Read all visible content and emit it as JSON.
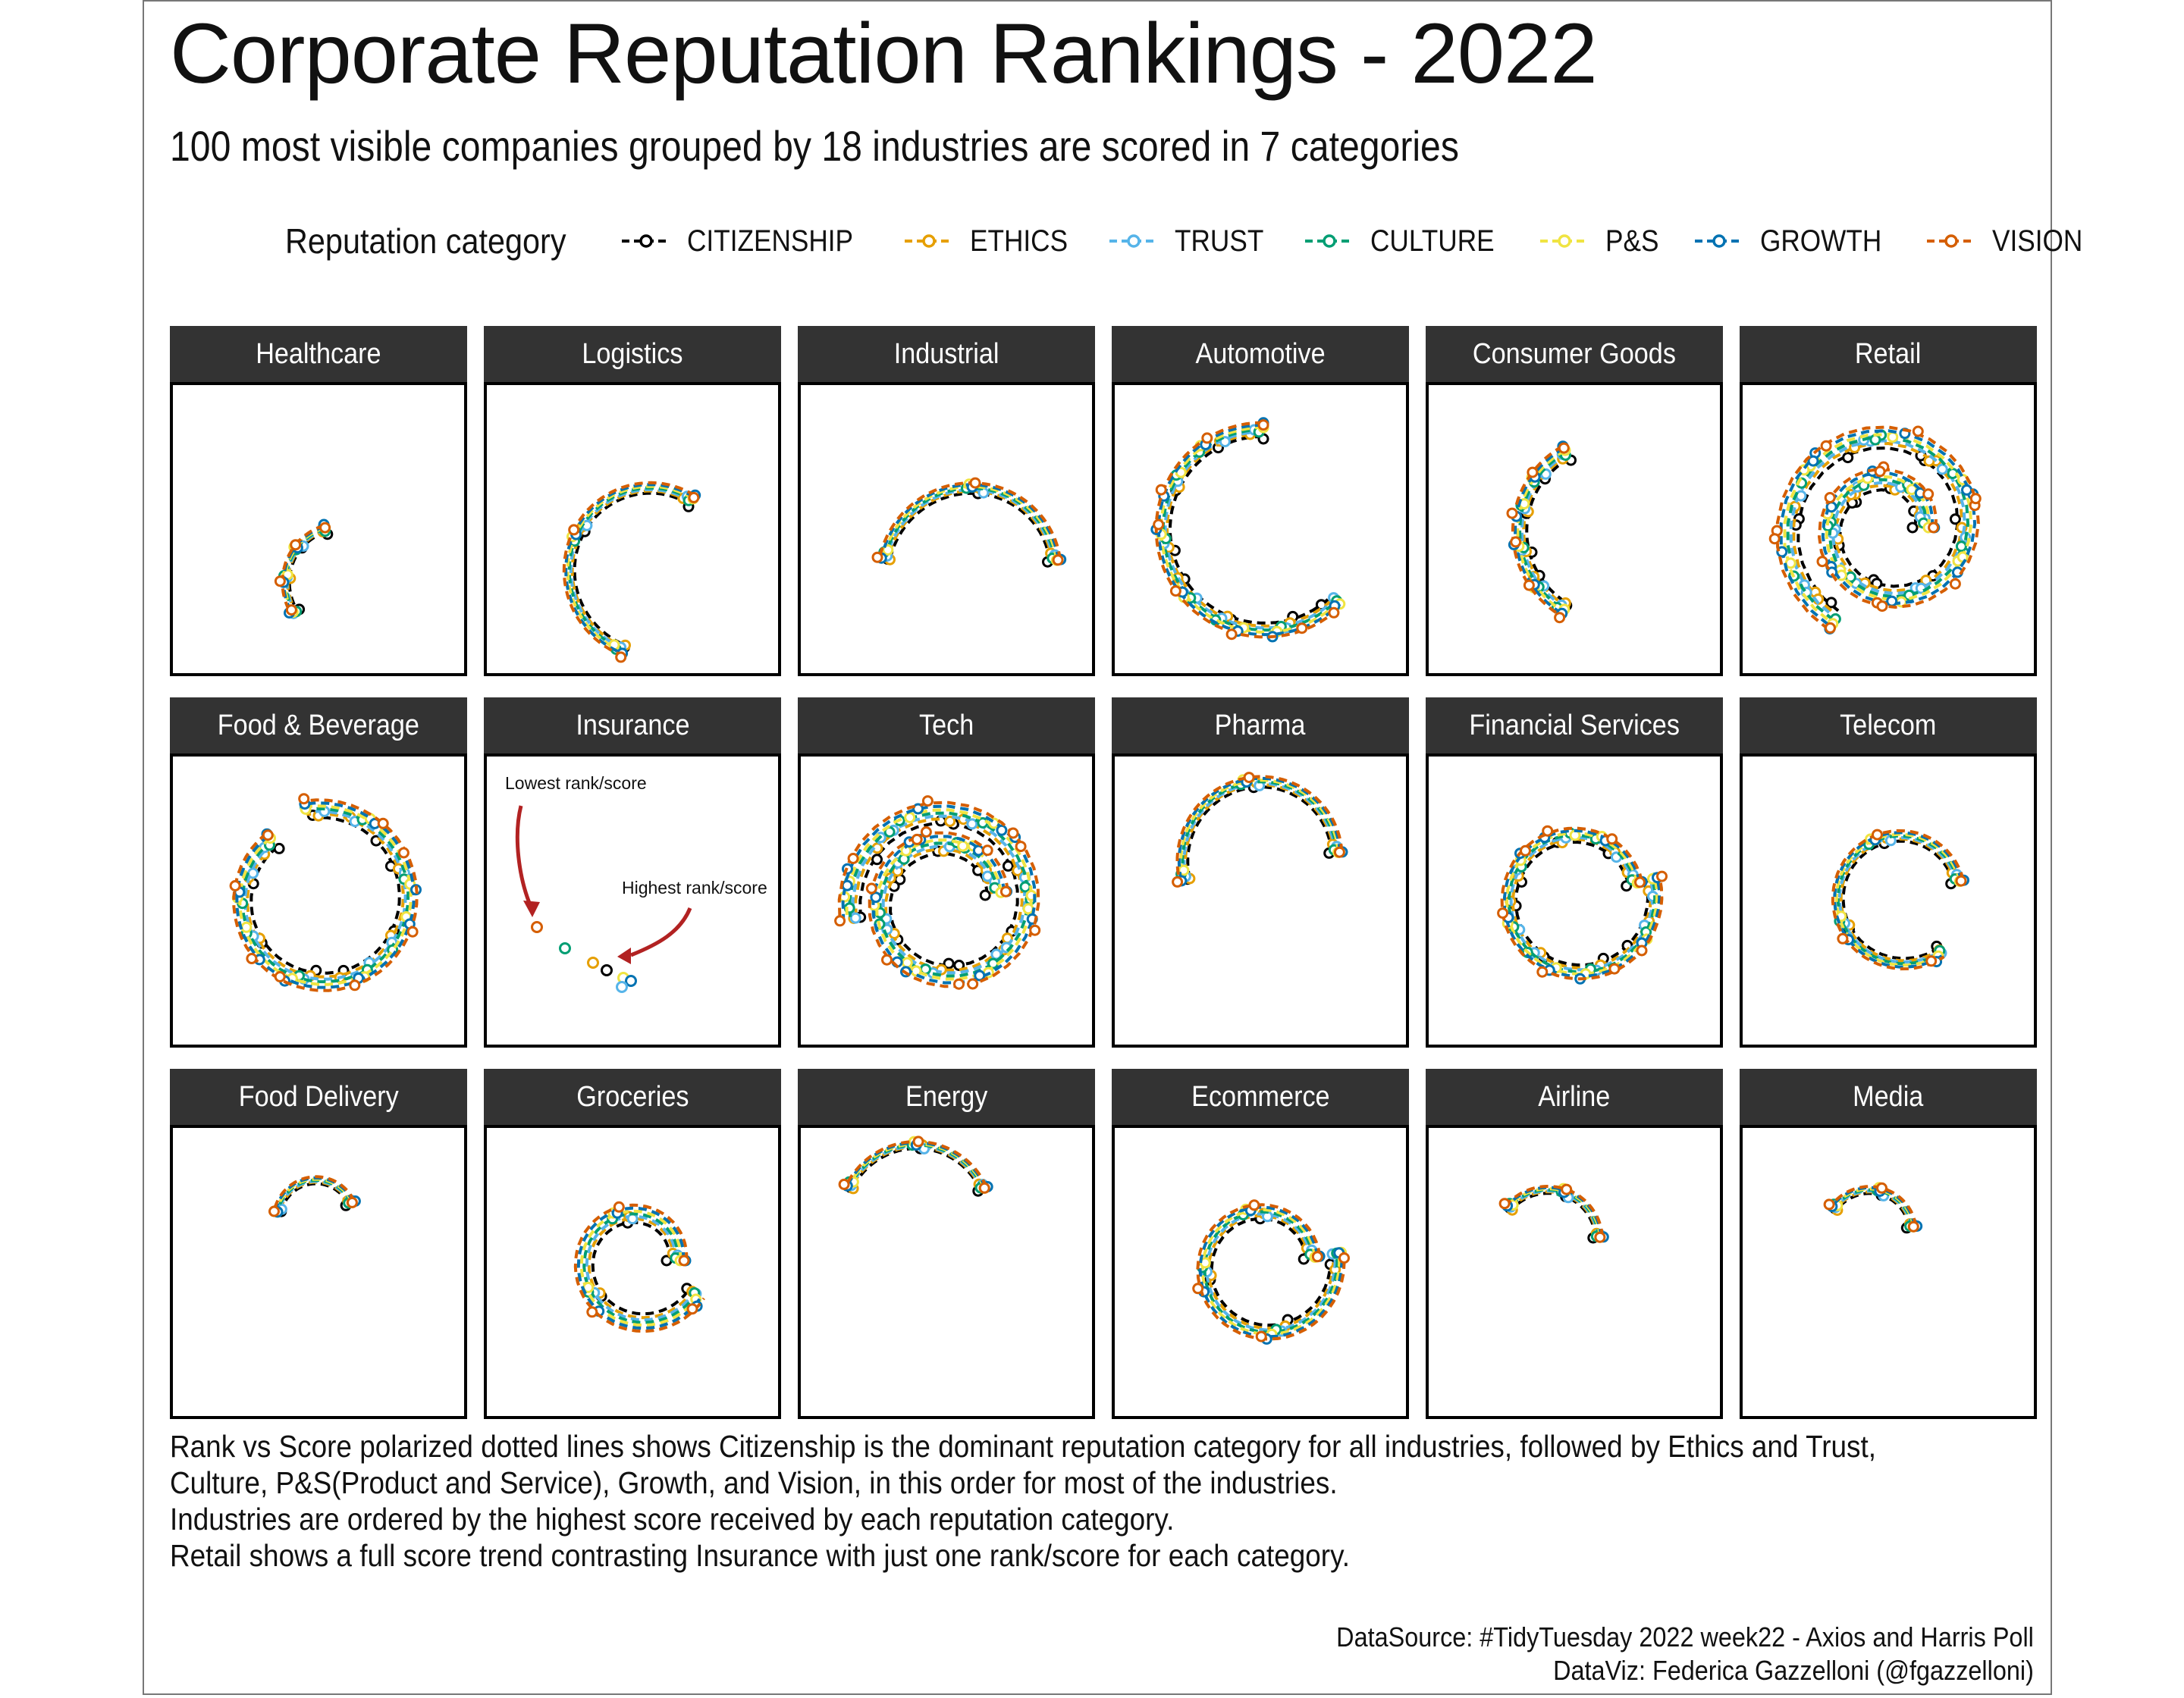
{
  "title": "Corporate Reputation Rankings - 2022",
  "subtitle": "100 most visible companies grouped by 18 industries are scored in 7 categories",
  "legend": {
    "title": "Reputation category",
    "items": [
      {
        "label": "CITIZENSHIP",
        "color": "#000000"
      },
      {
        "label": "ETHICS",
        "color": "#E69F00"
      },
      {
        "label": "TRUST",
        "color": "#56B4E9"
      },
      {
        "label": "CULTURE",
        "color": "#009E73"
      },
      {
        "label": "P&S",
        "color": "#F0E442"
      },
      {
        "label": "GROWTH",
        "color": "#0072B2"
      },
      {
        "label": "VISION",
        "color": "#D55E00"
      }
    ]
  },
  "annotations": {
    "lowest": "Lowest rank/score",
    "highest": "Highest rank/score",
    "arrow_color": "#B22222"
  },
  "caption": [
    "Rank vs Score polarized dotted lines shows Citizenship is the dominant reputation category for all industries, followed by Ethics and Trust,",
    "Culture, P&S(Product and Service), Growth, and Vision, in this order for most of the industries.",
    "Industries are ordered by the highest score received by each reputation category.",
    "Retail shows a full score trend contrasting Insurance with just one rank/score for each category."
  ],
  "source": [
    "DataSource: #TidyTuesday 2022 week22 - Axios and Harris Poll",
    "DataViz: Federica Gazzelloni (@fgazzelloni)"
  ],
  "chart_data": {
    "type": "scatter",
    "coordinates": "polar (rank vs score)",
    "series_categories": [
      "CITIZENSHIP",
      "ETHICS",
      "TRUST",
      "CULTURE",
      "P&S",
      "GROWTH",
      "VISION"
    ],
    "facets": [
      {
        "name": "Healthcare",
        "companies": 4
      },
      {
        "name": "Logistics",
        "companies": 3
      },
      {
        "name": "Industrial",
        "companies": 3
      },
      {
        "name": "Automotive",
        "companies": 8
      },
      {
        "name": "Consumer Goods",
        "companies": 6
      },
      {
        "name": "Retail",
        "companies": 16
      },
      {
        "name": "Food & Beverage",
        "companies": 9
      },
      {
        "name": "Insurance",
        "companies": 1
      },
      {
        "name": "Tech",
        "companies": 14
      },
      {
        "name": "Pharma",
        "companies": 3
      },
      {
        "name": "Financial Services",
        "companies": 9
      },
      {
        "name": "Telecom",
        "companies": 4
      },
      {
        "name": "Food Delivery",
        "companies": 2
      },
      {
        "name": "Groceries",
        "companies": 4
      },
      {
        "name": "Energy",
        "companies": 3
      },
      {
        "name": "Ecommerce",
        "companies": 5
      },
      {
        "name": "Airline",
        "companies": 3
      },
      {
        "name": "Media",
        "companies": 3
      }
    ]
  }
}
